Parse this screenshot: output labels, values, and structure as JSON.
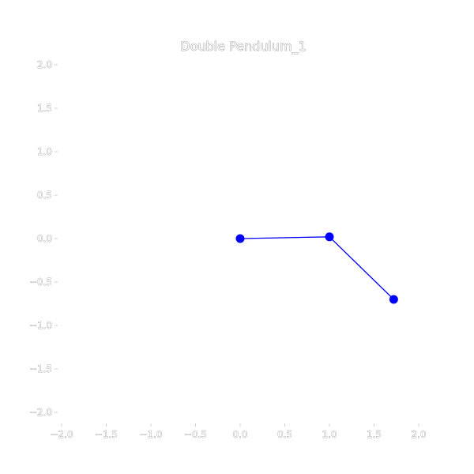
{
  "chart_data": {
    "type": "line",
    "title": "Double Pendulum_1",
    "xlabel": "",
    "ylabel": "",
    "xlim": [
      -2.0,
      2.0
    ],
    "ylim": [
      -2.0,
      2.0
    ],
    "grid": false,
    "x_ticks": [
      "−2.0",
      "−1.5",
      "−1.0",
      "−0.5",
      "0.0",
      "0.5",
      "1.0",
      "1.5",
      "2.0"
    ],
    "y_ticks": [
      "2.0",
      "1.5",
      "1.0",
      "0.5",
      "0.0",
      "−0.5",
      "−1.0",
      "−1.5",
      "−2.0"
    ],
    "series": [
      {
        "x": [
          0.0,
          1.0,
          1.72
        ],
        "y": [
          0.0,
          0.02,
          -0.7
        ],
        "color": "#0000ff",
        "marker": "circle"
      }
    ]
  }
}
